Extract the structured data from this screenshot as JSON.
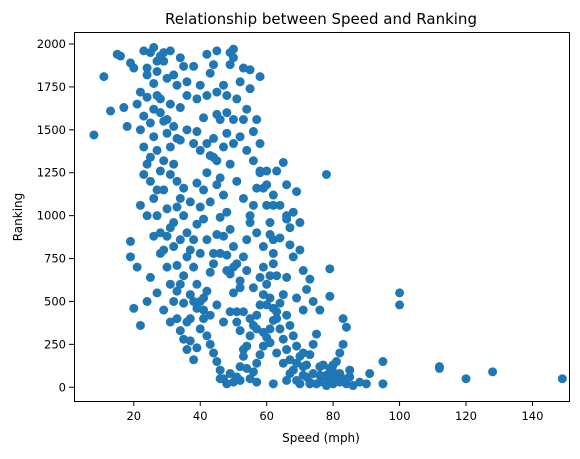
{
  "chart_data": {
    "type": "scatter",
    "title": "Relationship between Speed and Ranking",
    "xlabel": "Speed (mph)",
    "ylabel": "Ranking",
    "xlim": [
      2,
      151
    ],
    "ylim": [
      -80,
      2070
    ],
    "xticks": [
      20,
      40,
      60,
      80,
      100,
      120,
      140
    ],
    "yticks": [
      0,
      250,
      500,
      750,
      1000,
      1250,
      1500,
      1750,
      2000
    ],
    "grid": false,
    "legend": "none",
    "marker_color": "#1f77b4",
    "points": [
      [
        8,
        1470
      ],
      [
        11,
        1810
      ],
      [
        13,
        1610
      ],
      [
        15,
        1940
      ],
      [
        16,
        1930
      ],
      [
        17,
        1630
      ],
      [
        18,
        1520
      ],
      [
        19,
        1890
      ],
      [
        20,
        1860
      ],
      [
        19,
        760
      ],
      [
        19,
        850
      ],
      [
        20,
        460
      ],
      [
        21,
        700
      ],
      [
        22,
        1060
      ],
      [
        22,
        360
      ],
      [
        24,
        500
      ],
      [
        23,
        1960
      ],
      [
        25,
        1950
      ],
      [
        26,
        1980
      ],
      [
        27,
        1900
      ],
      [
        28,
        1930
      ],
      [
        29,
        1950
      ],
      [
        31,
        1960
      ],
      [
        32,
        1820
      ],
      [
        35,
        1870
      ],
      [
        38,
        1870
      ],
      [
        42,
        1940
      ],
      [
        45,
        1960
      ],
      [
        49,
        1950
      ],
      [
        50,
        1970
      ],
      [
        50,
        1920
      ],
      [
        53,
        1860
      ],
      [
        55,
        1850
      ],
      [
        58,
        1810
      ],
      [
        43,
        1830
      ],
      [
        47,
        1760
      ],
      [
        40,
        1760
      ],
      [
        36,
        1700
      ],
      [
        31,
        1650
      ],
      [
        34,
        1630
      ],
      [
        45,
        1590
      ],
      [
        50,
        1560
      ],
      [
        53,
        1560
      ],
      [
        48,
        1600
      ],
      [
        41,
        1570
      ],
      [
        39,
        1490
      ],
      [
        33,
        1450
      ],
      [
        56,
        1490
      ],
      [
        58,
        1420
      ],
      [
        60,
        1260
      ],
      [
        65,
        1310
      ],
      [
        66,
        1180
      ],
      [
        69,
        1140
      ],
      [
        63,
        1260
      ],
      [
        62,
        1060
      ],
      [
        66,
        980
      ],
      [
        67,
        930
      ],
      [
        67,
        830
      ],
      [
        68,
        760
      ],
      [
        66,
        640
      ],
      [
        64,
        870
      ],
      [
        61,
        890
      ],
      [
        62,
        780
      ],
      [
        59,
        820
      ],
      [
        62,
        720
      ],
      [
        63,
        650
      ],
      [
        70,
        800
      ],
      [
        71,
        680
      ],
      [
        73,
        630
      ],
      [
        72,
        570
      ],
      [
        74,
        500
      ],
      [
        71,
        450
      ],
      [
        69,
        520
      ],
      [
        76,
        450
      ],
      [
        78,
        1240
      ],
      [
        79,
        690
      ],
      [
        79,
        530
      ],
      [
        83,
        400
      ],
      [
        84,
        350
      ],
      [
        83,
        250
      ],
      [
        80,
        130
      ],
      [
        82,
        80
      ],
      [
        85,
        100
      ],
      [
        88,
        30
      ],
      [
        90,
        20
      ],
      [
        91,
        80
      ],
      [
        95,
        150
      ],
      [
        95,
        20
      ],
      [
        100,
        550
      ],
      [
        100,
        480
      ],
      [
        112,
        120
      ],
      [
        112,
        110
      ],
      [
        120,
        50
      ],
      [
        128,
        90
      ],
      [
        149,
        50
      ],
      [
        24,
        1820
      ],
      [
        26,
        1770
      ],
      [
        27,
        1700
      ],
      [
        28,
        1600
      ],
      [
        29,
        1550
      ],
      [
        30,
        1480
      ],
      [
        31,
        1400
      ],
      [
        32,
        1300
      ],
      [
        33,
        1200
      ],
      [
        34,
        1100
      ],
      [
        35,
        1000
      ],
      [
        36,
        900
      ],
      [
        37,
        800
      ],
      [
        38,
        700
      ],
      [
        39,
        600
      ],
      [
        40,
        500
      ],
      [
        41,
        400
      ],
      [
        42,
        300
      ],
      [
        43,
        250
      ],
      [
        44,
        200
      ],
      [
        45,
        150
      ],
      [
        46,
        100
      ],
      [
        47,
        50
      ],
      [
        48,
        20
      ],
      [
        49,
        80
      ],
      [
        50,
        30
      ],
      [
        51,
        60
      ],
      [
        52,
        120
      ],
      [
        53,
        180
      ],
      [
        54,
        240
      ],
      [
        55,
        300
      ],
      [
        56,
        360
      ],
      [
        57,
        420
      ],
      [
        58,
        480
      ],
      [
        59,
        540
      ],
      [
        60,
        600
      ],
      [
        61,
        520
      ],
      [
        62,
        460
      ],
      [
        63,
        400
      ],
      [
        64,
        340
      ],
      [
        65,
        280
      ],
      [
        66,
        220
      ],
      [
        67,
        160
      ],
      [
        68,
        100
      ],
      [
        69,
        40
      ],
      [
        70,
        20
      ],
      [
        71,
        70
      ],
      [
        72,
        130
      ],
      [
        73,
        190
      ],
      [
        74,
        250
      ],
      [
        75,
        310
      ],
      [
        76,
        120
      ],
      [
        77,
        60
      ],
      [
        78,
        10
      ],
      [
        79,
        40
      ],
      [
        80,
        90
      ],
      [
        81,
        150
      ],
      [
        82,
        200
      ],
      [
        83,
        40
      ],
      [
        84,
        20
      ],
      [
        85,
        60
      ],
      [
        86,
        10
      ],
      [
        22,
        1500
      ],
      [
        23,
        1400
      ],
      [
        24,
        1300
      ],
      [
        25,
        1200
      ],
      [
        26,
        1100
      ],
      [
        27,
        1000
      ],
      [
        28,
        900
      ],
      [
        29,
        800
      ],
      [
        30,
        700
      ],
      [
        31,
        600
      ],
      [
        32,
        500
      ],
      [
        33,
        400
      ],
      [
        34,
        330
      ],
      [
        35,
        280
      ],
      [
        36,
        220
      ],
      [
        37,
        400
      ],
      [
        38,
        500
      ],
      [
        39,
        950
      ],
      [
        40,
        1050
      ],
      [
        41,
        1150
      ],
      [
        42,
        1250
      ],
      [
        43,
        1350
      ],
      [
        44,
        1450
      ],
      [
        45,
        1320
      ],
      [
        46,
        1220
      ],
      [
        47,
        1120
      ],
      [
        48,
        1020
      ],
      [
        49,
        920
      ],
      [
        50,
        820
      ],
      [
        51,
        720
      ],
      [
        52,
        620
      ],
      [
        53,
        760
      ],
      [
        54,
        860
      ],
      [
        55,
        960
      ],
      [
        56,
        1060
      ],
      [
        57,
        1160
      ],
      [
        58,
        1260
      ],
      [
        59,
        1160
      ],
      [
        60,
        1060
      ],
      [
        61,
        960
      ],
      [
        62,
        860
      ],
      [
        21,
        1650
      ],
      [
        22,
        1720
      ],
      [
        23,
        1580
      ],
      [
        24,
        1690
      ],
      [
        25,
        1540
      ],
      [
        26,
        1460
      ],
      [
        27,
        1380
      ],
      [
        28,
        1260
      ],
      [
        29,
        1150
      ],
      [
        30,
        1040
      ],
      [
        31,
        930
      ],
      [
        32,
        820
      ],
      [
        33,
        710
      ],
      [
        34,
        600
      ],
      [
        35,
        490
      ],
      [
        36,
        380
      ],
      [
        37,
        270
      ],
      [
        38,
        160
      ],
      [
        39,
        230
      ],
      [
        40,
        340
      ],
      [
        41,
        450
      ],
      [
        42,
        560
      ],
      [
        43,
        670
      ],
      [
        44,
        780
      ],
      [
        45,
        890
      ],
      [
        46,
        990
      ],
      [
        47,
        880
      ],
      [
        48,
        770
      ],
      [
        49,
        660
      ],
      [
        50,
        550
      ],
      [
        51,
        440
      ],
      [
        52,
        330
      ],
      [
        53,
        220
      ],
      [
        54,
        110
      ],
      [
        55,
        50
      ],
      [
        56,
        90
      ],
      [
        57,
        140
      ],
      [
        58,
        190
      ],
      [
        59,
        240
      ],
      [
        60,
        290
      ],
      [
        61,
        340
      ],
      [
        62,
        390
      ],
      [
        63,
        440
      ],
      [
        64,
        490
      ],
      [
        65,
        540
      ],
      [
        66,
        420
      ],
      [
        67,
        360
      ],
      [
        68,
        300
      ],
      [
        69,
        240
      ],
      [
        70,
        180
      ],
      [
        71,
        120
      ],
      [
        72,
        60
      ],
      [
        73,
        30
      ],
      [
        74,
        80
      ],
      [
        75,
        20
      ],
      [
        76,
        30
      ],
      [
        77,
        130
      ],
      [
        78,
        70
      ],
      [
        79,
        110
      ],
      [
        80,
        20
      ],
      [
        81,
        50
      ],
      [
        82,
        30
      ],
      [
        23,
        1240
      ],
      [
        25,
        1340
      ],
      [
        27,
        1150
      ],
      [
        29,
        1320
      ],
      [
        31,
        1240
      ],
      [
        33,
        1050
      ],
      [
        35,
        1160
      ],
      [
        37,
        1080
      ],
      [
        39,
        1190
      ],
      [
        41,
        980
      ],
      [
        43,
        1080
      ],
      [
        45,
        1180
      ],
      [
        47,
        1400
      ],
      [
        49,
        1300
      ],
      [
        51,
        1200
      ],
      [
        53,
        1100
      ],
      [
        55,
        1000
      ],
      [
        57,
        900
      ],
      [
        59,
        700
      ],
      [
        61,
        650
      ],
      [
        24,
        1000
      ],
      [
        26,
        880
      ],
      [
        28,
        780
      ],
      [
        30,
        880
      ],
      [
        32,
        960
      ],
      [
        34,
        860
      ],
      [
        36,
        760
      ],
      [
        38,
        860
      ],
      [
        40,
        780
      ],
      [
        42,
        860
      ],
      [
        44,
        720
      ],
      [
        46,
        780
      ],
      [
        48,
        680
      ],
      [
        50,
        700
      ],
      [
        52,
        580
      ],
      [
        54,
        680
      ],
      [
        56,
        580
      ],
      [
        58,
        640
      ],
      [
        60,
        480
      ],
      [
        25,
        640
      ],
      [
        27,
        550
      ],
      [
        29,
        450
      ],
      [
        31,
        380
      ],
      [
        33,
        560
      ],
      [
        35,
        650
      ],
      [
        37,
        540
      ],
      [
        39,
        460
      ],
      [
        41,
        520
      ],
      [
        43,
        420
      ],
      [
        45,
        480
      ],
      [
        47,
        380
      ],
      [
        49,
        440
      ],
      [
        51,
        380
      ],
      [
        53,
        440
      ],
      [
        55,
        400
      ],
      [
        57,
        340
      ],
      [
        59,
        320
      ],
      [
        61,
        260
      ],
      [
        63,
        200
      ],
      [
        65,
        140
      ],
      [
        67,
        80
      ],
      [
        69,
        140
      ],
      [
        71,
        200
      ],
      [
        26,
        1620
      ],
      [
        28,
        1680
      ],
      [
        30,
        1560
      ],
      [
        32,
        1520
      ],
      [
        34,
        1440
      ],
      [
        36,
        1500
      ],
      [
        38,
        1420
      ],
      [
        40,
        1380
      ],
      [
        42,
        1420
      ],
      [
        44,
        1340
      ],
      [
        46,
        1560
      ],
      [
        48,
        1480
      ],
      [
        50,
        1420
      ],
      [
        52,
        1460
      ],
      [
        54,
        1380
      ],
      [
        56,
        1320
      ],
      [
        58,
        1250
      ],
      [
        60,
        1180
      ],
      [
        62,
        1120
      ],
      [
        64,
        1060
      ],
      [
        66,
        1000
      ],
      [
        68,
        1020
      ],
      [
        70,
        960
      ],
      [
        24,
        1860
      ],
      [
        27,
        1840
      ],
      [
        30,
        1800
      ],
      [
        33,
        1760
      ],
      [
        36,
        1780
      ],
      [
        39,
        1680
      ],
      [
        42,
        1700
      ],
      [
        45,
        1720
      ],
      [
        48,
        1700
      ],
      [
        51,
        1680
      ],
      [
        54,
        1620
      ],
      [
        57,
        1560
      ],
      [
        29,
        1900
      ],
      [
        34,
        1920
      ],
      [
        44,
        1880
      ],
      [
        49,
        1880
      ],
      [
        52,
        1780
      ],
      [
        55,
        1740
      ],
      [
        46,
        50
      ],
      [
        52,
        40
      ],
      [
        57,
        30
      ],
      [
        62,
        20
      ],
      [
        66,
        40
      ],
      [
        73,
        20
      ],
      [
        76,
        70
      ],
      [
        80,
        60
      ],
      [
        84,
        50
      ]
    ]
  }
}
